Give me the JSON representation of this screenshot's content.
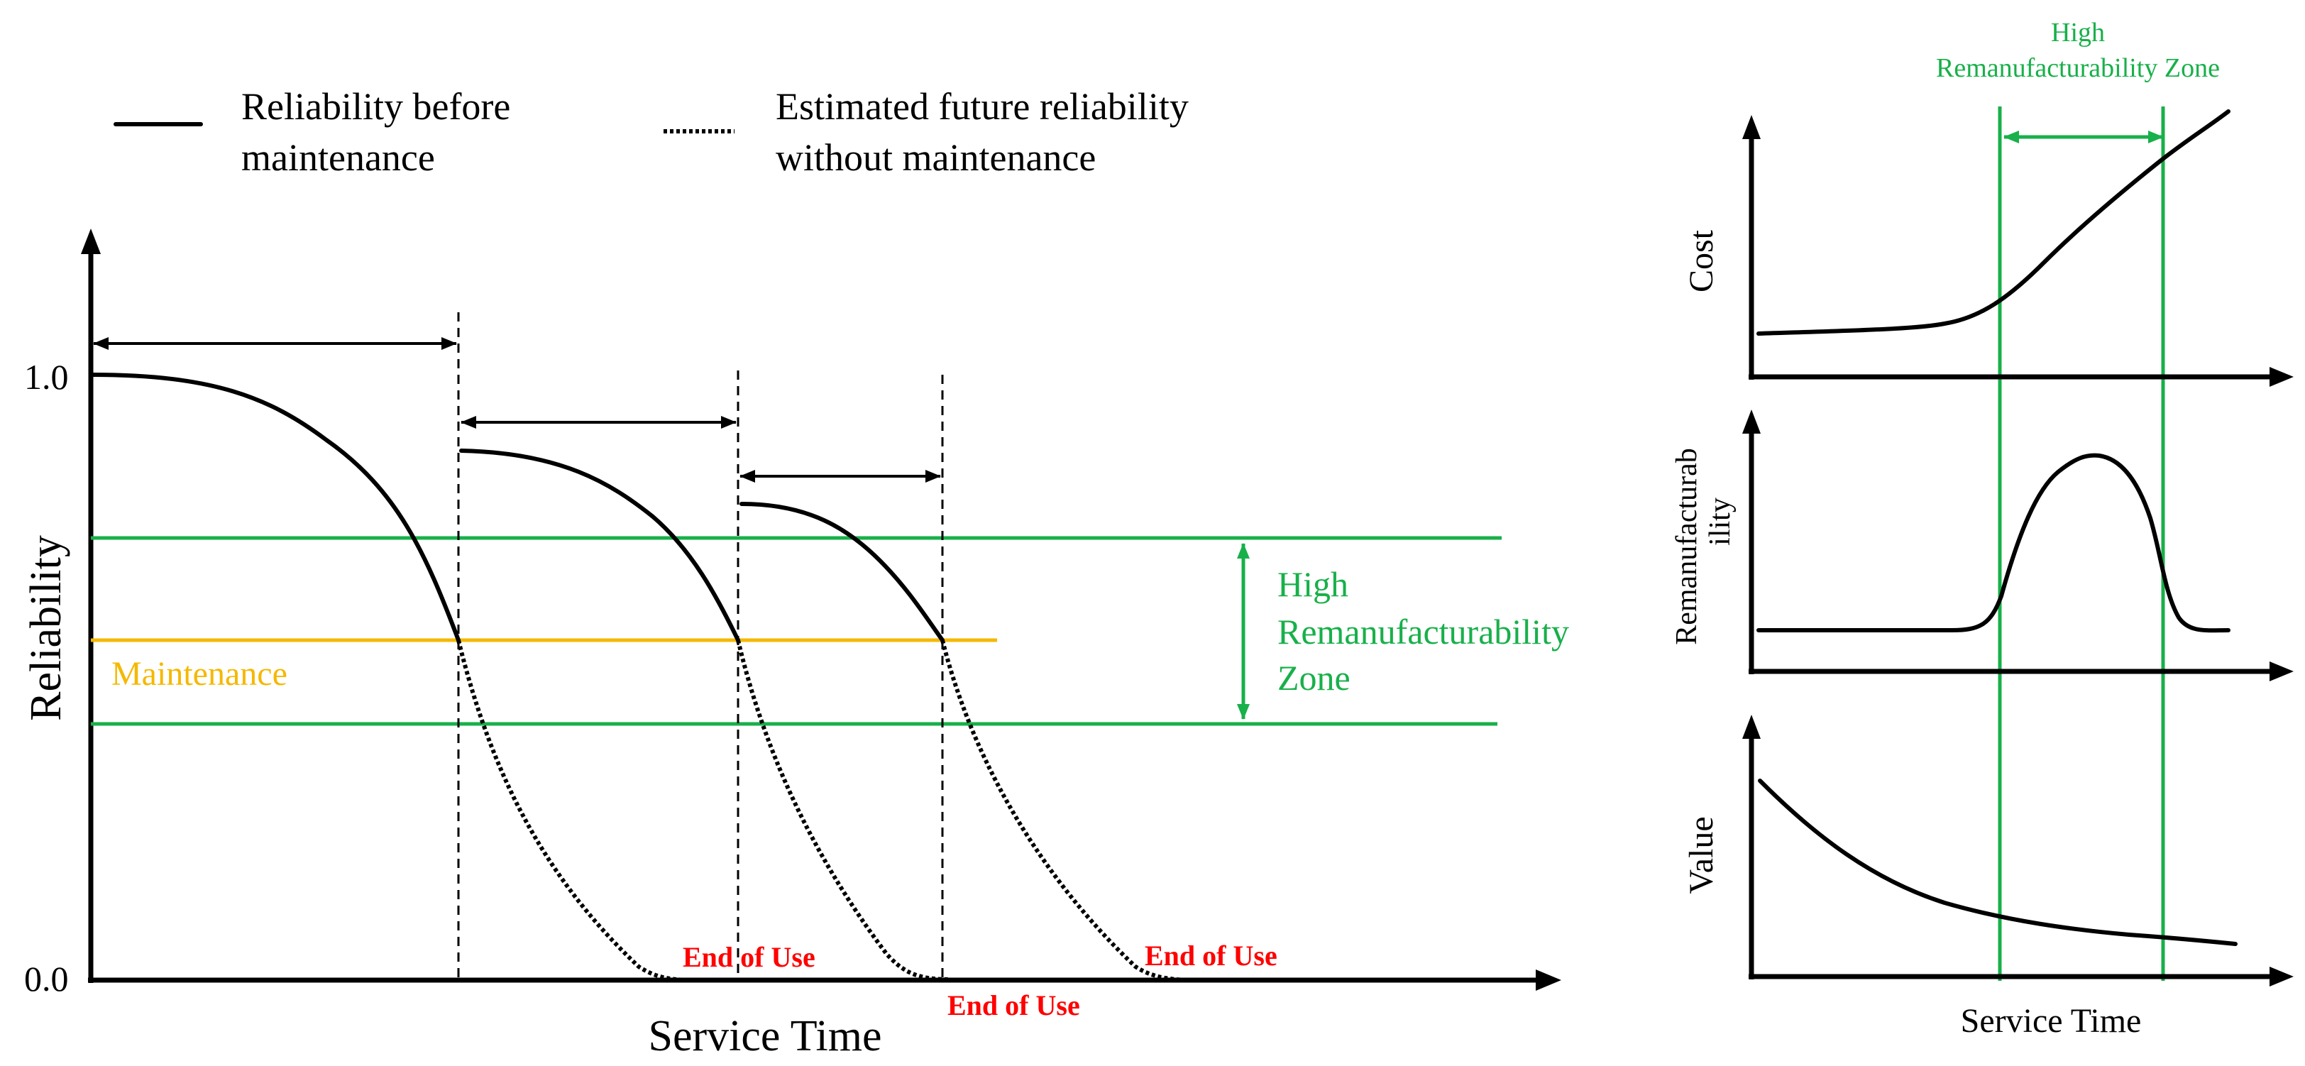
{
  "colors": {
    "green": "#18b04a",
    "orange": "#f5b800",
    "red": "#ff0000",
    "black": "#000000"
  },
  "legend": {
    "solid_line1": "Reliability before",
    "solid_line2": "maintenance",
    "dotted_line1": "Estimated future reliability",
    "dotted_line2": "without maintenance"
  },
  "main": {
    "y_axis_label": "Reliability",
    "x_axis_label": "Service Time",
    "tick_top": "1.0",
    "tick_bottom": "0.0",
    "maintenance_label": "Maintenance",
    "zone_label_1": "High",
    "zone_label_2": "Remanufacturability",
    "zone_label_3": "Zone",
    "end_of_use_1": "End of Use",
    "end_of_use_2": "End of Use",
    "end_of_use_3": "End of Use"
  },
  "side": {
    "zone_label_1": "High",
    "zone_label_2": "Remanufacturability Zone",
    "cost_label": "Cost",
    "reman_label_1": "Remanufacturab",
    "reman_label_2": "ility",
    "value_label": "Value",
    "x_axis_label": "Service Time"
  }
}
